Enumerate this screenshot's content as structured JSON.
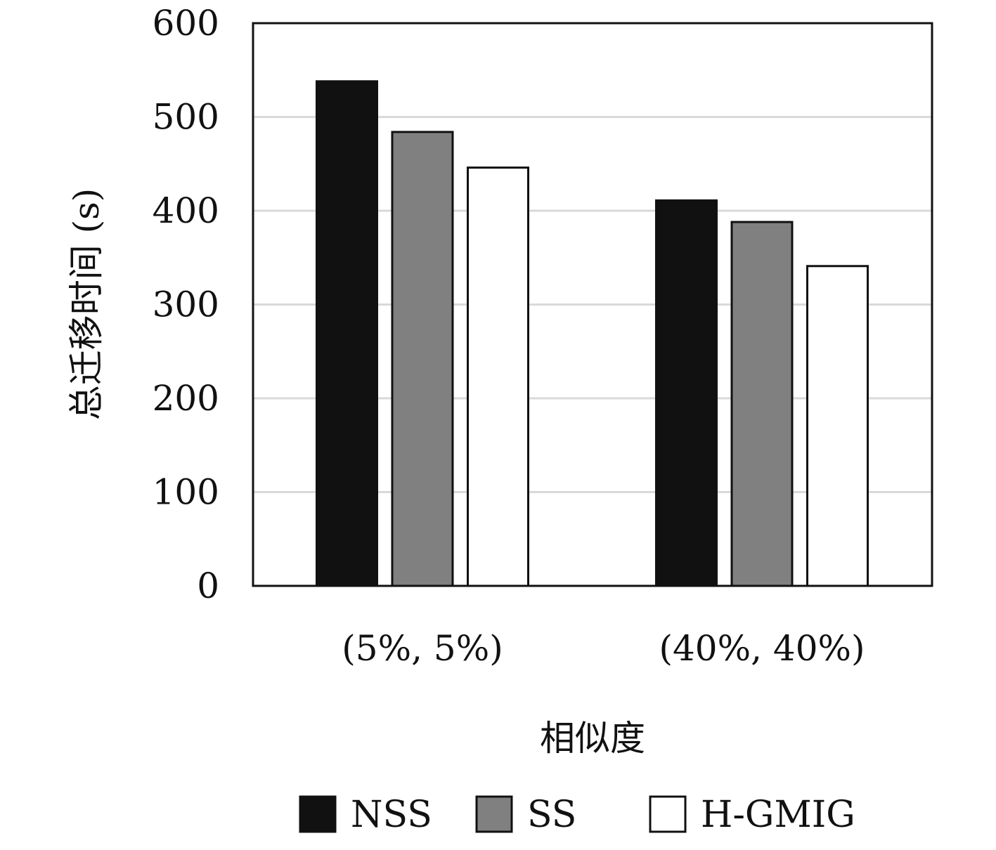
{
  "chart_data": {
    "type": "bar",
    "title": "",
    "xlabel": "相似度",
    "ylabel": "总迁移时间 (s)",
    "categories": [
      "(5%, 5%)",
      "(40%, 40%)"
    ],
    "series": [
      {
        "name": "NSS",
        "values": [
          538,
          411
        ],
        "color": "#111111"
      },
      {
        "name": "SS",
        "values": [
          484,
          388
        ],
        "color": "#808080"
      },
      {
        "name": "H-GMIG",
        "values": [
          446,
          341
        ],
        "color": "#ffffff"
      }
    ],
    "ylim": [
      0,
      600
    ],
    "yticks": [
      "0",
      "100",
      "200",
      "300",
      "400",
      "500",
      "600"
    ],
    "grid": true,
    "legend_position": "bottom"
  }
}
